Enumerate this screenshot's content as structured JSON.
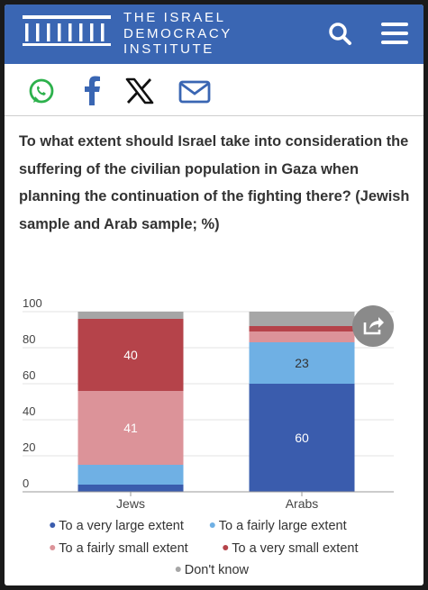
{
  "header": {
    "brand_lines": [
      "THE ISRAEL",
      "DEMOCRACY",
      "INSTITUTE"
    ],
    "color": "#3a66b3"
  },
  "share_icons": [
    "whatsapp-icon",
    "facebook-icon",
    "x-icon",
    "email-icon"
  ],
  "question": "To what extent should Israel take into consideration the suffering of the civilian population in Gaza when planning the continuation of the fighting there? (Jewish sample and Arab sample; %)",
  "chart_data": {
    "type": "bar",
    "stacked": true,
    "categories": [
      "Jews",
      "Arabs"
    ],
    "ylim": [
      0,
      100
    ],
    "yticks": [
      0,
      20,
      40,
      60,
      80,
      100
    ],
    "grid": true,
    "legend_position": "bottom",
    "series": [
      {
        "name": "To a very large extent",
        "color": "#3a5cad",
        "values": [
          4,
          60
        ],
        "labels": [
          "",
          "60"
        ]
      },
      {
        "name": "To a fairly large extent",
        "color": "#6fb0e4",
        "values": [
          11,
          23
        ],
        "labels": [
          "",
          "23"
        ]
      },
      {
        "name": "To a fairly small extent",
        "color": "#dc9399",
        "values": [
          41,
          6
        ],
        "labels": [
          "41",
          ""
        ]
      },
      {
        "name": "To a very small extent",
        "color": "#b5434a",
        "values": [
          40,
          3
        ],
        "labels": [
          "40",
          ""
        ]
      },
      {
        "name": "Don't know",
        "color": "#a6a6a6",
        "values": [
          4,
          8
        ],
        "labels": [
          "",
          ""
        ]
      }
    ]
  }
}
